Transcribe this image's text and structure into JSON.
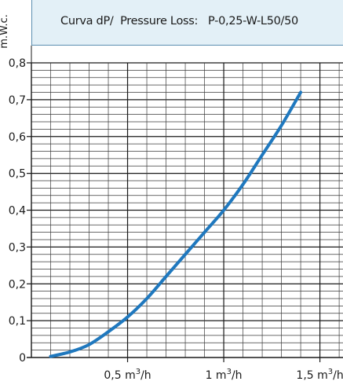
{
  "header": {
    "title": "Curva dP/  Pressure Loss:   P-0,25-W-L50/50"
  },
  "chart_data": {
    "type": "line",
    "title": "Curva dP/  Pressure Loss:   P-0,25-W-L50/50",
    "ylabel": "m.W.c.",
    "xlabel": "",
    "xlim": [
      0,
      1.62
    ],
    "ylim": [
      0,
      0.8
    ],
    "y_ticks": [
      {
        "value": 0.0,
        "label": "0"
      },
      {
        "value": 0.1,
        "label": "0,1"
      },
      {
        "value": 0.2,
        "label": "0,2"
      },
      {
        "value": 0.3,
        "label": "0,3"
      },
      {
        "value": 0.4,
        "label": "0,4"
      },
      {
        "value": 0.5,
        "label": "0,5"
      },
      {
        "value": 0.6,
        "label": "0,6"
      },
      {
        "value": 0.7,
        "label": "0,7"
      },
      {
        "value": 0.8,
        "label": "0,8"
      }
    ],
    "x_ticks": [
      {
        "value": 0.5,
        "num": "0,5",
        "unit": "m",
        "sup": "3",
        "per": "/h"
      },
      {
        "value": 1.0,
        "num": "1",
        "unit": "m",
        "sup": "3",
        "per": "/h"
      },
      {
        "value": 1.5,
        "num": "1,5",
        "unit": "m",
        "sup": "3",
        "per": "/h"
      }
    ],
    "grid": true,
    "line_color": "#1f78be",
    "series": [
      {
        "x": [
          0.1,
          0.2,
          0.3,
          0.4,
          0.5,
          0.6,
          0.7,
          0.8,
          0.9,
          1.0,
          1.1,
          1.2,
          1.3,
          1.4
        ],
        "y": [
          0.003,
          0.015,
          0.035,
          0.07,
          0.11,
          0.16,
          0.22,
          0.28,
          0.34,
          0.4,
          0.47,
          0.55,
          0.63,
          0.72
        ]
      }
    ]
  }
}
